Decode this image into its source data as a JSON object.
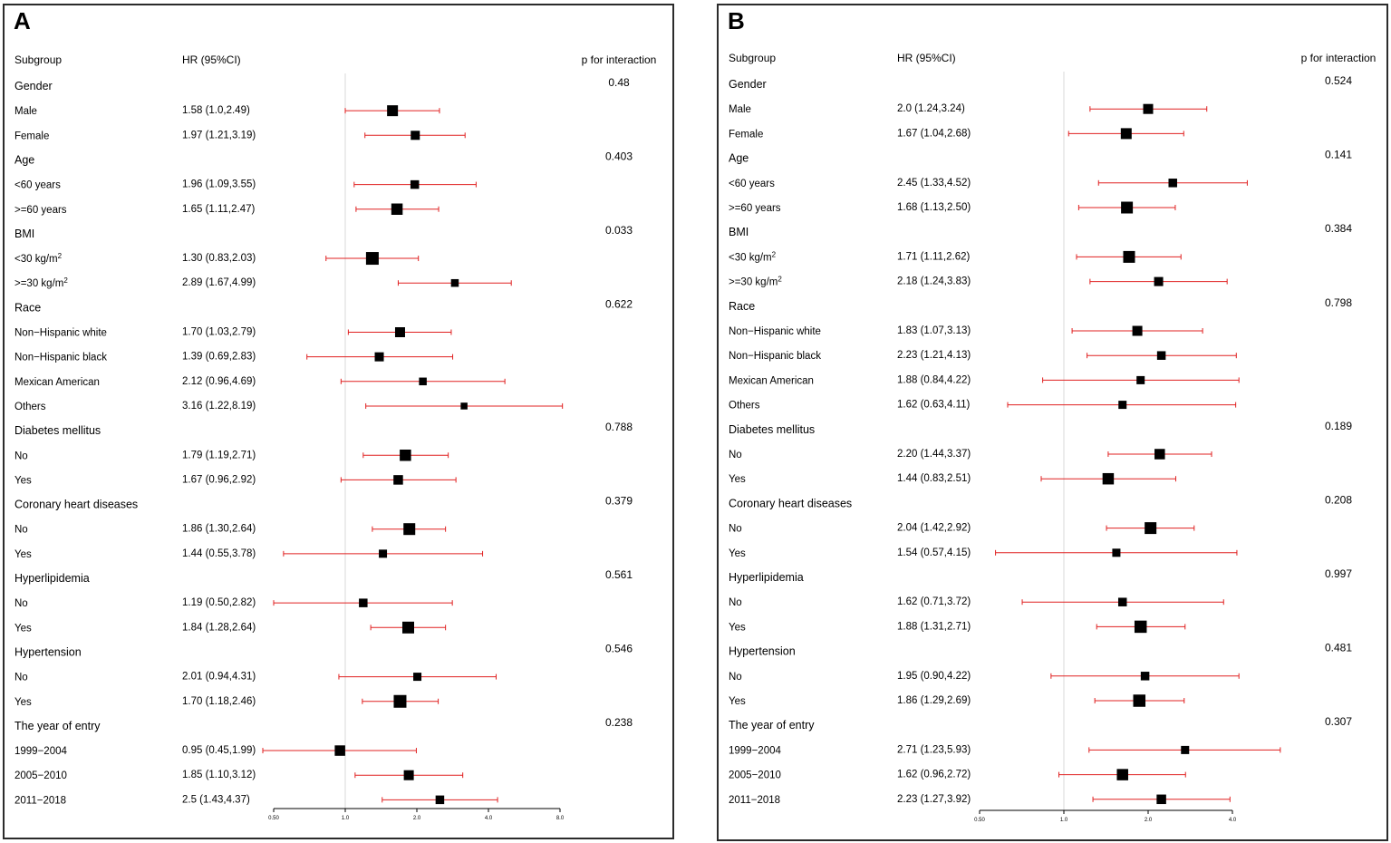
{
  "chart_data": [
    {
      "type": "forest",
      "panel_label": "A",
      "headers": {
        "subgroup": "Subgroup",
        "hr": "HR (95%CI)",
        "p": "p for interaction"
      },
      "x_scale": "log",
      "xlim": [
        0.5,
        8.0
      ],
      "ticks": [
        "0.50",
        "1.0",
        "2.0",
        "4.0",
        "8.0"
      ],
      "reference_line": 1.0,
      "groups": [
        {
          "name": "Gender",
          "p": "0.48",
          "rows": [
            {
              "label": "Male",
              "hr_text": "1.58 (1.0,2.49)",
              "hr": 1.58,
              "lo": 1.0,
              "hi": 2.49,
              "weight": 0.8
            },
            {
              "label": "Female",
              "hr_text": "1.97 (1.21,3.19)",
              "hr": 1.97,
              "lo": 1.21,
              "hi": 3.19,
              "weight": 0.6
            }
          ]
        },
        {
          "name": "Age",
          "p": "0.403",
          "rows": [
            {
              "label": "<60 years",
              "hr_text": "1.96 (1.09,3.55)",
              "hr": 1.96,
              "lo": 1.09,
              "hi": 3.55,
              "weight": 0.55
            },
            {
              "label": ">=60 years",
              "hr_text": "1.65 (1.11,2.47)",
              "hr": 1.65,
              "lo": 1.11,
              "hi": 2.47,
              "weight": 0.85
            }
          ]
        },
        {
          "name": "BMI",
          "p": "0.033",
          "rows": [
            {
              "label": "<30 kg/m",
              "sup": "2",
              "hr_text": "1.30 (0.83,2.03)",
              "hr": 1.3,
              "lo": 0.83,
              "hi": 2.03,
              "weight": 1.0
            },
            {
              "label": ">=30 kg/m",
              "sup": "2",
              "hr_text": "2.89 (1.67,4.99)",
              "hr": 2.89,
              "lo": 1.67,
              "hi": 4.99,
              "weight": 0.45
            }
          ]
        },
        {
          "name": "Race",
          "p": "0.622",
          "rows": [
            {
              "label": "Non−Hispanic white",
              "hr_text": "1.70 (1.03,2.79)",
              "hr": 1.7,
              "lo": 1.03,
              "hi": 2.79,
              "weight": 0.7
            },
            {
              "label": "Non−Hispanic black",
              "hr_text": "1.39 (0.69,2.83)",
              "hr": 1.39,
              "lo": 0.69,
              "hi": 2.83,
              "weight": 0.6
            },
            {
              "label": "Mexican American",
              "hr_text": "2.12 (0.96,4.69)",
              "hr": 2.12,
              "lo": 0.96,
              "hi": 4.69,
              "weight": 0.45
            },
            {
              "label": "Others",
              "hr_text": "3.16 (1.22,8.19)",
              "hr": 3.16,
              "lo": 1.22,
              "hi": 8.19,
              "weight": 0.35
            }
          ]
        },
        {
          "name": "Diabetes mellitus",
          "p": "0.788",
          "rows": [
            {
              "label": "No",
              "hr_text": "1.79 (1.19,2.71)",
              "hr": 1.79,
              "lo": 1.19,
              "hi": 2.71,
              "weight": 0.85
            },
            {
              "label": "Yes",
              "hr_text": "1.67 (0.96,2.92)",
              "hr": 1.67,
              "lo": 0.96,
              "hi": 2.92,
              "weight": 0.65
            }
          ]
        },
        {
          "name": "Coronary heart diseases",
          "p": "0.379",
          "rows": [
            {
              "label": "No",
              "hr_text": "1.86 (1.30,2.64)",
              "hr": 1.86,
              "lo": 1.3,
              "hi": 2.64,
              "weight": 0.9
            },
            {
              "label": "Yes",
              "hr_text": "1.44 (0.55,3.78)",
              "hr": 1.44,
              "lo": 0.55,
              "hi": 3.78,
              "weight": 0.5
            }
          ]
        },
        {
          "name": "Hyperlipidemia",
          "p": "0.561",
          "rows": [
            {
              "label": "No",
              "hr_text": "1.19 (0.50,2.82)",
              "hr": 1.19,
              "lo": 0.5,
              "hi": 2.82,
              "weight": 0.55
            },
            {
              "label": "Yes",
              "hr_text": "1.84 (1.28,2.64)",
              "hr": 1.84,
              "lo": 1.28,
              "hi": 2.64,
              "weight": 0.9
            }
          ]
        },
        {
          "name": "Hypertension",
          "p": "0.546",
          "rows": [
            {
              "label": "No",
              "hr_text": "2.01 (0.94,4.31)",
              "hr": 2.01,
              "lo": 0.94,
              "hi": 4.31,
              "weight": 0.5
            },
            {
              "label": "Yes",
              "hr_text": "1.70 (1.18,2.46)",
              "hr": 1.7,
              "lo": 1.18,
              "hi": 2.46,
              "weight": 1.0
            }
          ]
        },
        {
          "name": "The year of entry",
          "p": "0.238",
          "rows": [
            {
              "label": "1999−2004",
              "hr_text": "0.95 (0.45,1.99)",
              "hr": 0.95,
              "lo": 0.45,
              "hi": 1.99,
              "weight": 0.75
            },
            {
              "label": "2005−2010",
              "hr_text": "1.85 (1.10,3.12)",
              "hr": 1.85,
              "lo": 1.1,
              "hi": 3.12,
              "weight": 0.7
            },
            {
              "label": "2011−2018",
              "hr_text": "2.5 (1.43,4.37)",
              "hr": 2.5,
              "lo": 1.43,
              "hi": 4.37,
              "weight": 0.55
            }
          ]
        }
      ]
    },
    {
      "type": "forest",
      "panel_label": "B",
      "headers": {
        "subgroup": "Subgroup",
        "hr": "HR (95%CI)",
        "p": "p for interaction"
      },
      "x_scale": "log",
      "xlim": [
        0.5,
        4.0
      ],
      "ticks": [
        "0.50",
        "1.0",
        "2.0",
        "4.0"
      ],
      "reference_line": 1.0,
      "groups": [
        {
          "name": "Gender",
          "p": "0.524",
          "rows": [
            {
              "label": "Male",
              "hr_text": "2.0 (1.24,3.24)",
              "hr": 2.0,
              "lo": 1.24,
              "hi": 3.24,
              "weight": 0.7
            },
            {
              "label": "Female",
              "hr_text": "1.67 (1.04,2.68)",
              "hr": 1.67,
              "lo": 1.04,
              "hi": 2.68,
              "weight": 0.8
            }
          ]
        },
        {
          "name": "Age",
          "p": "0.141",
          "rows": [
            {
              "label": "<60 years",
              "hr_text": "2.45 (1.33,4.52)",
              "hr": 2.45,
              "lo": 1.33,
              "hi": 4.52,
              "weight": 0.55
            },
            {
              "label": ">=60 years",
              "hr_text": "1.68 (1.13,2.50)",
              "hr": 1.68,
              "lo": 1.13,
              "hi": 2.5,
              "weight": 0.9
            }
          ]
        },
        {
          "name": "BMI",
          "p": "0.384",
          "rows": [
            {
              "label": "<30 kg/m",
              "sup": "2",
              "hr_text": "1.71 (1.11,2.62)",
              "hr": 1.71,
              "lo": 1.11,
              "hi": 2.62,
              "weight": 0.9
            },
            {
              "label": ">=30 kg/m",
              "sup": "2",
              "hr_text": "2.18 (1.24,3.83)",
              "hr": 2.18,
              "lo": 1.24,
              "hi": 3.83,
              "weight": 0.6
            }
          ]
        },
        {
          "name": "Race",
          "p": "0.798",
          "rows": [
            {
              "label": "Non−Hispanic white",
              "hr_text": "1.83 (1.07,3.13)",
              "hr": 1.83,
              "lo": 1.07,
              "hi": 3.13,
              "weight": 0.7
            },
            {
              "label": "Non−Hispanic black",
              "hr_text": "2.23 (1.21,4.13)",
              "hr": 2.23,
              "lo": 1.21,
              "hi": 4.13,
              "weight": 0.55
            },
            {
              "label": "Mexican American",
              "hr_text": "1.88 (0.84,4.22)",
              "hr": 1.88,
              "lo": 0.84,
              "hi": 4.22,
              "weight": 0.5
            },
            {
              "label": "Others",
              "hr_text": "1.62 (0.63,4.11)",
              "hr": 1.62,
              "lo": 0.63,
              "hi": 4.11,
              "weight": 0.5
            }
          ]
        },
        {
          "name": "Diabetes mellitus",
          "p": "0.189",
          "rows": [
            {
              "label": "No",
              "hr_text": "2.20 (1.44,3.37)",
              "hr": 2.2,
              "lo": 1.44,
              "hi": 3.37,
              "weight": 0.75
            },
            {
              "label": "Yes",
              "hr_text": "1.44 (0.83,2.51)",
              "hr": 1.44,
              "lo": 0.83,
              "hi": 2.51,
              "weight": 0.85
            }
          ]
        },
        {
          "name": "Coronary heart diseases",
          "p": "0.208",
          "rows": [
            {
              "label": "No",
              "hr_text": "2.04 (1.42,2.92)",
              "hr": 2.04,
              "lo": 1.42,
              "hi": 2.92,
              "weight": 0.9
            },
            {
              "label": "Yes",
              "hr_text": "1.54 (0.57,4.15)",
              "hr": 1.54,
              "lo": 0.57,
              "hi": 4.15,
              "weight": 0.5
            }
          ]
        },
        {
          "name": "Hyperlipidemia",
          "p": "0.997",
          "rows": [
            {
              "label": "No",
              "hr_text": "1.62 (0.71,3.72)",
              "hr": 1.62,
              "lo": 0.71,
              "hi": 3.72,
              "weight": 0.55
            },
            {
              "label": "Yes",
              "hr_text": "1.88 (1.31,2.71)",
              "hr": 1.88,
              "lo": 1.31,
              "hi": 2.71,
              "weight": 0.95
            }
          ]
        },
        {
          "name": "Hypertension",
          "p": "0.481",
          "rows": [
            {
              "label": "No",
              "hr_text": "1.95 (0.90,4.22)",
              "hr": 1.95,
              "lo": 0.9,
              "hi": 4.22,
              "weight": 0.55
            },
            {
              "label": "Yes",
              "hr_text": "1.86 (1.29,2.69)",
              "hr": 1.86,
              "lo": 1.29,
              "hi": 2.69,
              "weight": 0.95
            }
          ]
        },
        {
          "name": "The year of entry",
          "p": "0.307",
          "rows": [
            {
              "label": "1999−2004",
              "hr_text": "2.71 (1.23,5.93)",
              "hr": 2.71,
              "lo": 1.23,
              "hi": 5.93,
              "weight": 0.5
            },
            {
              "label": "2005−2010",
              "hr_text": "1.62 (0.96,2.72)",
              "hr": 1.62,
              "lo": 0.96,
              "hi": 2.72,
              "weight": 0.85
            },
            {
              "label": "2011−2018",
              "hr_text": "2.23 (1.27,3.92)",
              "hr": 2.23,
              "lo": 1.27,
              "hi": 3.92,
              "weight": 0.65
            }
          ]
        }
      ]
    }
  ],
  "style": {
    "ci_color": "#e02020",
    "marker_color": "#000000",
    "refline_color": "#d9d9d9",
    "border_color": "#2b2b2b"
  }
}
